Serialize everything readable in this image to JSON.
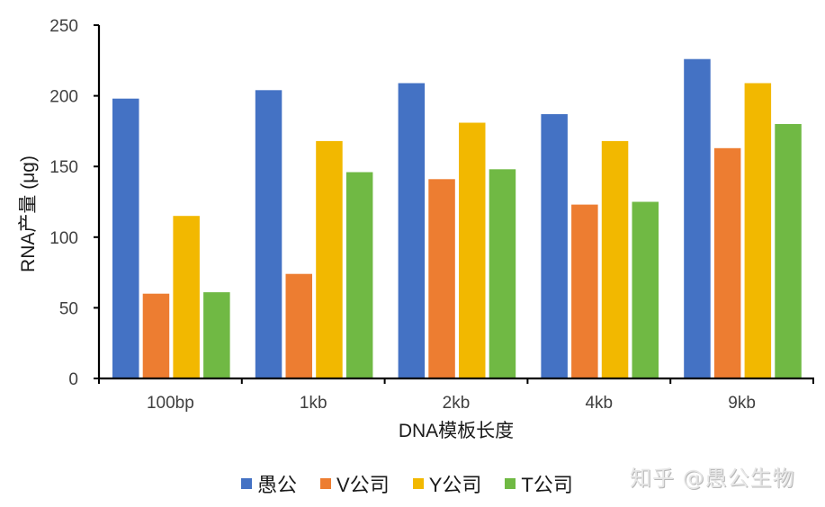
{
  "chart_data": {
    "type": "bar",
    "title": "",
    "xlabel": "DNA模板长度",
    "ylabel": "RNA产量 (μg)",
    "ylim": [
      0,
      250
    ],
    "yticks": [
      0,
      50,
      100,
      150,
      200,
      250
    ],
    "grid": false,
    "legend_position": "bottom",
    "categories": [
      "100bp",
      "1kb",
      "2kb",
      "4kb",
      "9kb"
    ],
    "series": [
      {
        "name": "愚公",
        "color": "#4472C4",
        "values": [
          198,
          204,
          209,
          187,
          226
        ]
      },
      {
        "name": "V公司",
        "color": "#ED7D31",
        "values": [
          60,
          74,
          141,
          123,
          163
        ]
      },
      {
        "name": "Y公司",
        "color": "#F2B800",
        "values": [
          115,
          168,
          181,
          168,
          209
        ]
      },
      {
        "name": "T公司",
        "color": "#70B944",
        "values": [
          61,
          146,
          148,
          125,
          180
        ]
      }
    ]
  },
  "watermark": "知乎 @愚公生物"
}
